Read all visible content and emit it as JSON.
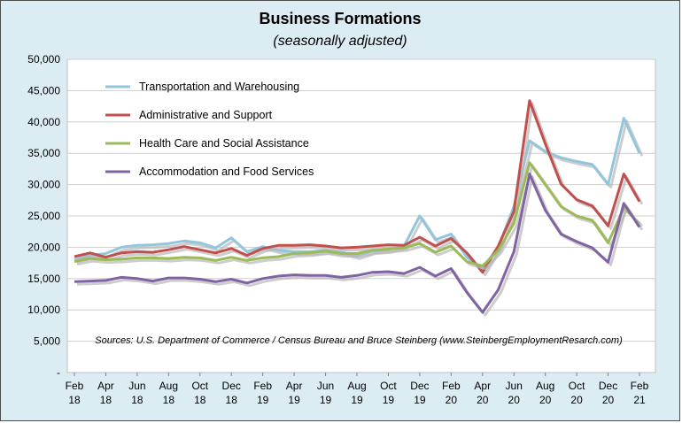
{
  "chart_data": {
    "type": "line",
    "title": "Business Formations",
    "subtitle": "(seasonally adjusted)",
    "source": "Sources: U.S. Department of Commerce / Census Bureau and Bruce Steinberg (www.SteinbergEmploymentResarch.com)",
    "ylim": [
      0,
      50000
    ],
    "yticks": [
      "-",
      "5,000",
      "10,000",
      "15,000",
      "20,000",
      "25,000",
      "30,000",
      "35,000",
      "40,000",
      "45,000",
      "50,000"
    ],
    "grid": true,
    "legend_position": "top-left",
    "x_tick_labels": [
      [
        "Feb",
        "18"
      ],
      [
        "Apr",
        "18"
      ],
      [
        "Jun",
        "18"
      ],
      [
        "Aug",
        "18"
      ],
      [
        "Oct",
        "18"
      ],
      [
        "Dec",
        "18"
      ],
      [
        "Feb",
        "19"
      ],
      [
        "Apr",
        "19"
      ],
      [
        "Jun",
        "19"
      ],
      [
        "Aug",
        "19"
      ],
      [
        "Oct",
        "19"
      ],
      [
        "Dec",
        "19"
      ],
      [
        "Feb",
        "20"
      ],
      [
        "Apr",
        "20"
      ],
      [
        "Jun",
        "20"
      ],
      [
        "Aug",
        "20"
      ],
      [
        "Oct",
        "20"
      ],
      [
        "Dec",
        "20"
      ],
      [
        "Feb",
        "21"
      ]
    ],
    "x": [
      "2018-02",
      "2018-03",
      "2018-04",
      "2018-05",
      "2018-06",
      "2018-07",
      "2018-08",
      "2018-09",
      "2018-10",
      "2018-11",
      "2018-12",
      "2019-01",
      "2019-02",
      "2019-03",
      "2019-04",
      "2019-05",
      "2019-06",
      "2019-07",
      "2019-08",
      "2019-09",
      "2019-10",
      "2019-11",
      "2019-12",
      "2020-01",
      "2020-02",
      "2020-03",
      "2020-04",
      "2020-05",
      "2020-06",
      "2020-07",
      "2020-08",
      "2020-09",
      "2020-10",
      "2020-11",
      "2020-12",
      "2021-01",
      "2021-02"
    ],
    "series": [
      {
        "name": "Transportation and Warehousing",
        "color": "#93c6dd",
        "values": [
          18000,
          18700,
          19000,
          20000,
          20300,
          20400,
          20600,
          21000,
          20700,
          19900,
          21500,
          19300,
          20100,
          19500,
          19300,
          19300,
          19500,
          19200,
          18600,
          19400,
          19600,
          20200,
          25000,
          21200,
          22100,
          18400,
          16700,
          20000,
          26500,
          37000,
          35300,
          34300,
          33700,
          33200,
          30000,
          40600,
          35000
        ]
      },
      {
        "name": "Administrative and Support",
        "color": "#c0504d",
        "values": [
          18500,
          19100,
          18400,
          19100,
          19300,
          19200,
          19600,
          20100,
          19600,
          19100,
          19800,
          18700,
          19800,
          20300,
          20300,
          20400,
          20200,
          19900,
          20000,
          20200,
          20400,
          20300,
          21600,
          20200,
          21400,
          19100,
          16000,
          20200,
          25700,
          43400,
          36500,
          30100,
          27600,
          26600,
          23400,
          31700,
          27300
        ]
      },
      {
        "name": "Health Care and Social Assistance",
        "color": "#9bbb59",
        "values": [
          17700,
          18200,
          18000,
          18100,
          18300,
          18300,
          18200,
          18400,
          18300,
          17900,
          18400,
          17900,
          18300,
          18500,
          19000,
          19100,
          19400,
          19000,
          19000,
          19500,
          19700,
          19900,
          20600,
          19200,
          20200,
          17700,
          17000,
          19500,
          23800,
          33500,
          30000,
          26500,
          25000,
          24300,
          20700,
          26300,
          23800
        ]
      },
      {
        "name": "Accommodation and Food Services",
        "color": "#8064a2",
        "values": [
          14500,
          14600,
          14700,
          15200,
          15000,
          14600,
          15100,
          15100,
          14900,
          14500,
          14900,
          14300,
          15000,
          15400,
          15600,
          15500,
          15500,
          15200,
          15500,
          16000,
          16100,
          15800,
          16800,
          15400,
          16600,
          12800,
          9600,
          13200,
          19300,
          31700,
          25900,
          22100,
          20900,
          19900,
          17600,
          27000,
          23200
        ]
      }
    ]
  }
}
